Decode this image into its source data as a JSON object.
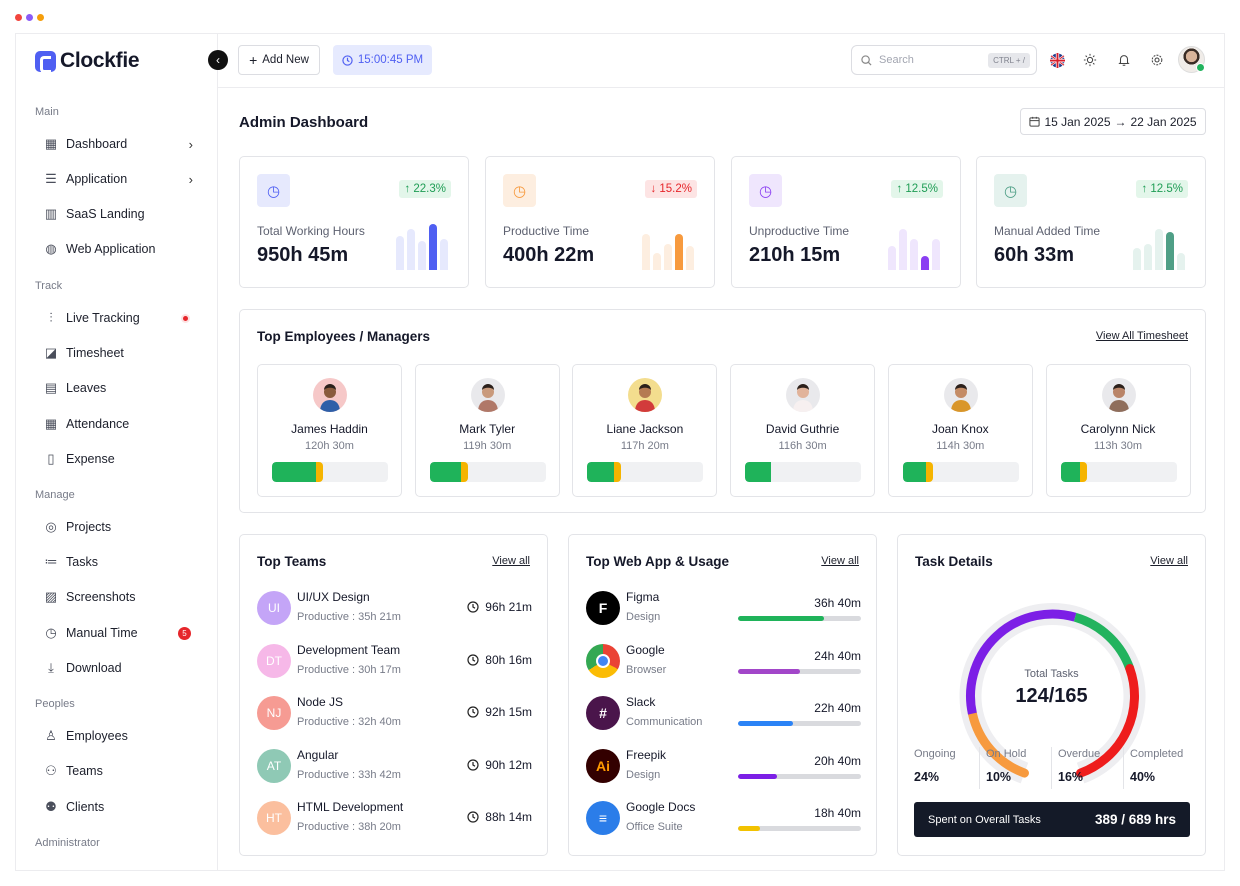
{
  "window_dots": [
    "#f2453d",
    "#8b5cf6",
    "#f59e0b"
  ],
  "brand": {
    "name": "Clockfie",
    "color": "#4f5ff2"
  },
  "sidebar": {
    "sections": [
      {
        "title": "Main",
        "items": [
          {
            "label": "Dashboard",
            "icon": "grid-icon",
            "chevron": true
          },
          {
            "label": "Application",
            "icon": "layers-icon",
            "chevron": true
          },
          {
            "label": "SaaS Landing",
            "icon": "layout-icon"
          },
          {
            "label": "Web Application",
            "icon": "globe-icon"
          }
        ]
      },
      {
        "title": "Track",
        "items": [
          {
            "label": "Live Tracking",
            "icon": "signal-icon",
            "dot": true
          },
          {
            "label": "Timesheet",
            "icon": "chart-icon"
          },
          {
            "label": "Leaves",
            "icon": "document-icon"
          },
          {
            "label": "Attendance",
            "icon": "calendar-icon"
          },
          {
            "label": "Expense",
            "icon": "receipt-icon"
          }
        ]
      },
      {
        "title": "Manage",
        "items": [
          {
            "label": "Projects",
            "icon": "target-icon"
          },
          {
            "label": "Tasks",
            "icon": "tasks-icon"
          },
          {
            "label": "Screenshots",
            "icon": "image-icon"
          },
          {
            "label": "Manual Time",
            "icon": "clock-icon",
            "badge": "5"
          },
          {
            "label": "Download",
            "icon": "download-icon"
          }
        ]
      },
      {
        "title": "Peoples",
        "items": [
          {
            "label": "Employees",
            "icon": "user-icon"
          },
          {
            "label": "Teams",
            "icon": "team-icon"
          },
          {
            "label": "Clients",
            "icon": "users-icon"
          }
        ]
      },
      {
        "title": "Administrator",
        "items": []
      }
    ]
  },
  "topbar": {
    "add_label": "Add New",
    "timer": "15:00:45 PM",
    "search_placeholder": "Search",
    "search_shortcut": "CTRL + /"
  },
  "dashboard": {
    "title": "Admin Dashboard",
    "date_from": "15 Jan 2025",
    "date_to": "22 Jan 2025"
  },
  "stats": [
    {
      "label": "Total Working Hours",
      "value": "950h 45m",
      "change": "22.3%",
      "trend": "up",
      "accent": "#4f5ff2",
      "soft": "#e6e9fd",
      "bars": [
        0.7,
        0.85,
        0.6,
        0.95,
        0.65
      ],
      "highlight": 3
    },
    {
      "label": "Productive Time",
      "value": "400h 22m",
      "change": "15.2%",
      "trend": "down",
      "accent": "#f79a3e",
      "soft": "#fdeee0",
      "bars": [
        0.75,
        0.35,
        0.55,
        0.75,
        0.5
      ],
      "highlight": 3
    },
    {
      "label": "Unproductive Time",
      "value": "210h 15m",
      "change": "12.5%",
      "trend": "up",
      "accent": "#8a3ff2",
      "soft": "#efe6fd",
      "bars": [
        0.5,
        0.85,
        0.65,
        0.3,
        0.65
      ],
      "highlight": 3
    },
    {
      "label": "Manual Added Time",
      "value": "60h 33m",
      "change": "12.5%",
      "trend": "up",
      "accent": "#4f9f86",
      "soft": "#e5f2ee",
      "bars": [
        0.45,
        0.55,
        0.85,
        0.8,
        0.35
      ],
      "highlight": 3
    }
  ],
  "employees": {
    "title": "Top Employees / Managers",
    "link": "View All Timesheet",
    "items": [
      {
        "name": "James Haddin",
        "hours": "120h 30m",
        "bg": "#f6c8c8",
        "skin": "#8a5a3c",
        "shirt": "#2f5fa8",
        "progress": [
          0.38,
          0.06
        ]
      },
      {
        "name": "Mark Tyler",
        "hours": "119h 30m",
        "bg": "#e9e9ec",
        "skin": "#c99a7c",
        "shirt": "#b07868",
        "progress": [
          0.27,
          0.06
        ]
      },
      {
        "name": "Liane Jackson",
        "hours": "117h 20m",
        "bg": "#f3dd8e",
        "skin": "#b57a52",
        "shirt": "#d23b3b",
        "progress": [
          0.23,
          0.06
        ]
      },
      {
        "name": "David Guthrie",
        "hours": "116h 30m",
        "bg": "#e9e9ec",
        "skin": "#e1b39a",
        "shirt": "#f7f0f0",
        "progress": [
          0.22,
          0
        ]
      },
      {
        "name": "Joan Knox",
        "hours": "114h 30m",
        "bg": "#e9e9ec",
        "skin": "#c48c66",
        "shirt": "#d9962a",
        "progress": [
          0.2,
          0.06
        ]
      },
      {
        "name": "Carolynn Nick",
        "hours": "113h 30m",
        "bg": "#e9e9ec",
        "skin": "#b98468",
        "shirt": "#8f6e5c",
        "progress": [
          0.17,
          0.06
        ]
      }
    ]
  },
  "teams": {
    "title": "Top Teams",
    "link": "View all",
    "items": [
      {
        "initials": "UI",
        "name": "UI/UX Design",
        "productive": "Productive : 35h 21m",
        "time": "96h 21m",
        "color": "#c4a5f7"
      },
      {
        "initials": "DT",
        "name": "Development Team",
        "productive": "Productive : 30h 17m",
        "time": "80h 16m",
        "color": "#f6b8e8"
      },
      {
        "initials": "NJ",
        "name": "Node JS",
        "productive": "Productive : 32h 40m",
        "time": "92h 15m",
        "color": "#f69b93"
      },
      {
        "initials": "AT",
        "name": "Angular",
        "productive": "Productive : 33h 42m",
        "time": "90h 12m",
        "color": "#8fc9b5"
      },
      {
        "initials": "HT",
        "name": "HTML Development",
        "productive": "Productive : 38h 20m",
        "time": "88h 14m",
        "color": "#fbbf9e"
      }
    ]
  },
  "apps": {
    "title": "Top Web App & Usage",
    "link": "View all",
    "items": [
      {
        "name": "Figma",
        "category": "Design",
        "time": "36h 40m",
        "fill": 0.7,
        "color": "#1fb35a",
        "icon": "figma-icon",
        "bg": "#000000",
        "glyph": "F"
      },
      {
        "name": "Google",
        "category": "Browser",
        "time": "24h 40m",
        "fill": 0.5,
        "color": "#a246c9",
        "icon": "chrome-icon",
        "bg": "#4285f4",
        "glyph": "G"
      },
      {
        "name": "Slack",
        "category": "Communication",
        "time": "22h 40m",
        "fill": 0.45,
        "color": "#2b83f6",
        "icon": "slack-icon",
        "bg": "#4a154b",
        "glyph": "#"
      },
      {
        "name": "Freepik",
        "category": "Design",
        "time": "20h 40m",
        "fill": 0.32,
        "color": "#7c1fe6",
        "icon": "freepik-icon",
        "bg": "#330000",
        "glyph": "Ai"
      },
      {
        "name": "Google Docs",
        "category": "Office Suite",
        "time": "18h 40m",
        "fill": 0.18,
        "color": "#f2c200",
        "icon": "docs-icon",
        "bg": "#2b7de9",
        "glyph": "≡"
      }
    ]
  },
  "tasks": {
    "title": "Task Details",
    "link": "View all",
    "total_label": "Total Tasks",
    "total_value": "124/165",
    "segments": [
      {
        "color": "#f79a3e",
        "share": 0.18
      },
      {
        "color": "#7c1fe6",
        "share": 0.37
      },
      {
        "color": "#22b35e",
        "share": 0.17
      },
      {
        "color": "#ee1c1c",
        "share": 0.28
      }
    ],
    "stats": [
      {
        "label": "Ongoing",
        "value": "24%"
      },
      {
        "label": "On Hold",
        "value": "10%"
      },
      {
        "label": "Overdue",
        "value": "16%"
      },
      {
        "label": "Completed",
        "value": "40%"
      }
    ],
    "spent_label": "Spent on Overall Tasks",
    "spent_value": "389 / 689 hrs"
  }
}
